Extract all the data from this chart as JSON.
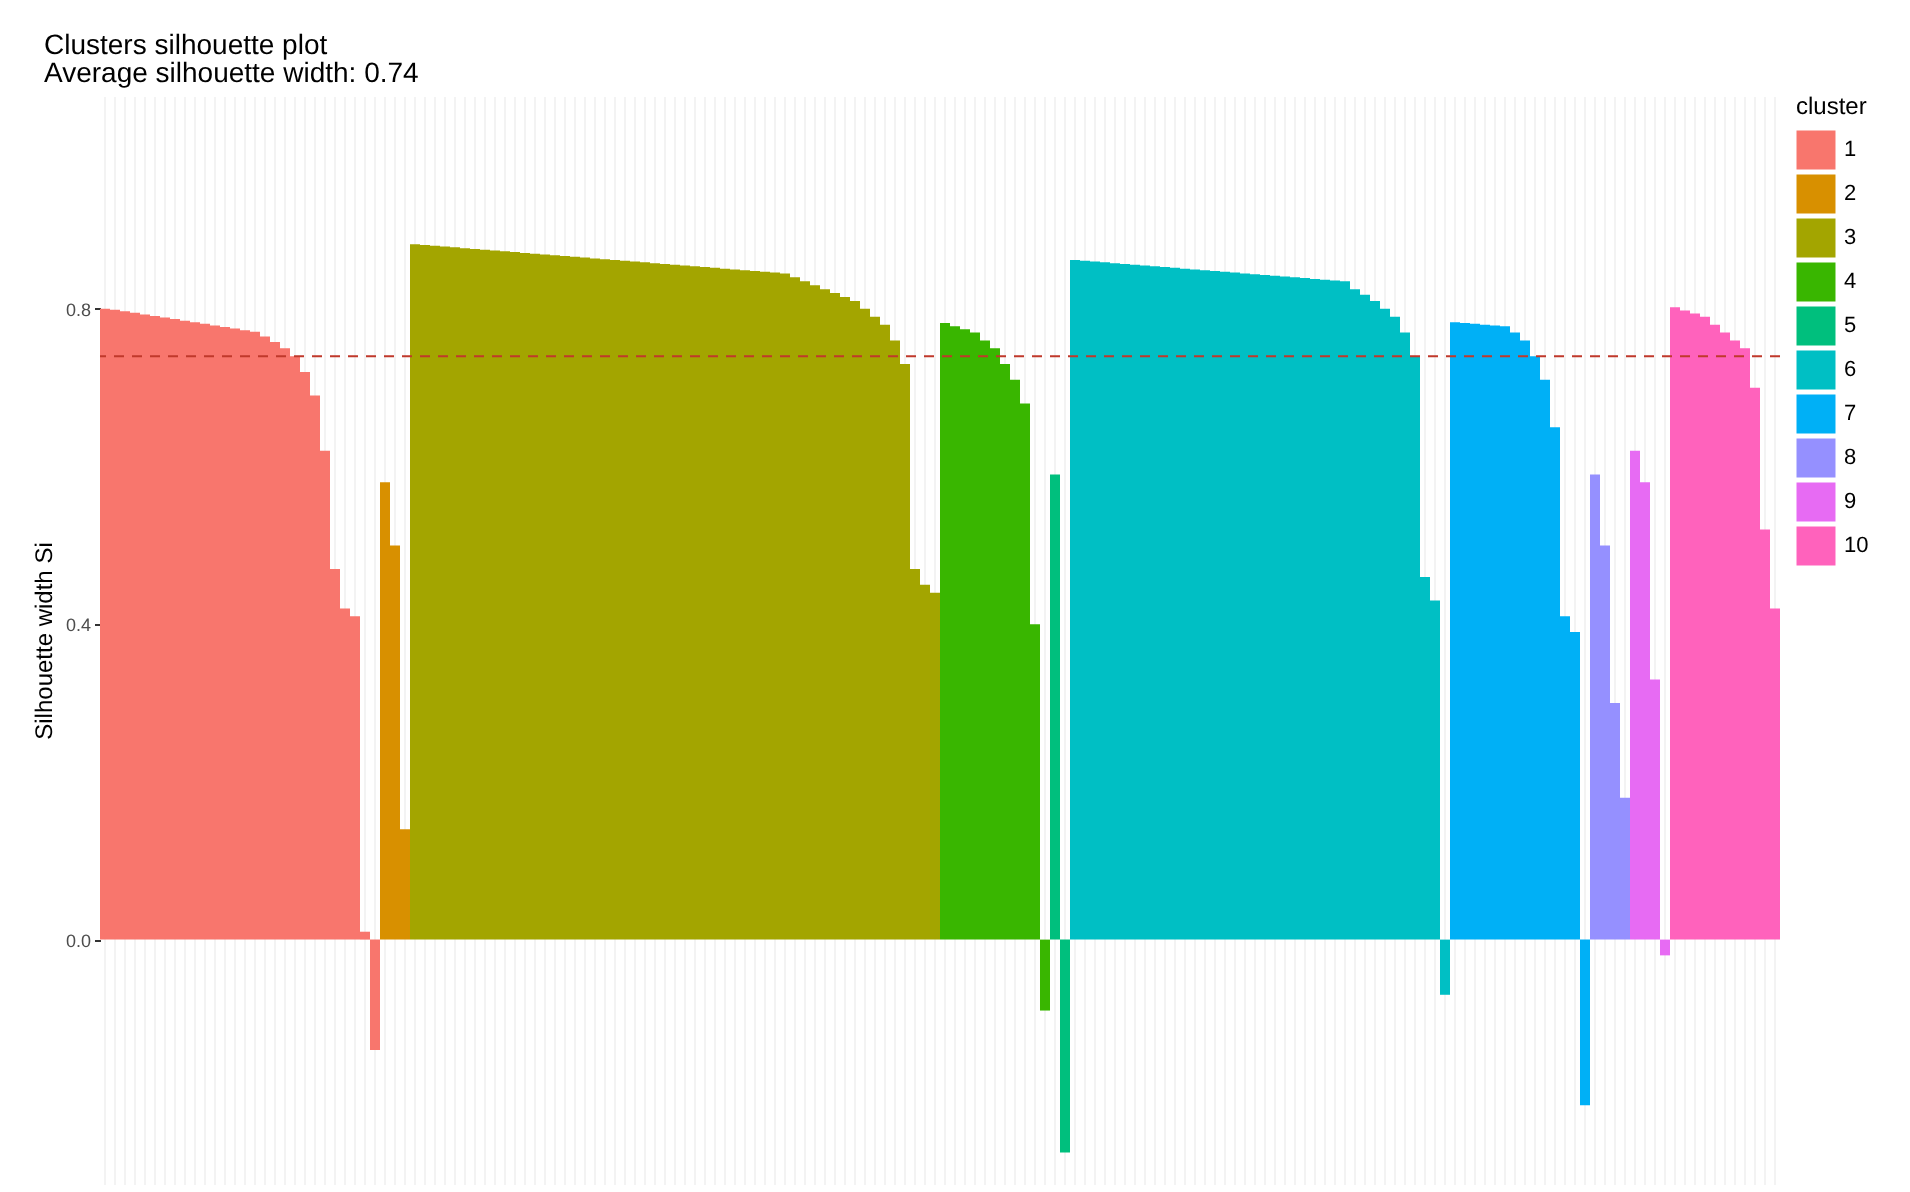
{
  "chart_data": {
    "type": "bar",
    "title": "Clusters silhouette plot",
    "subtitle": " Average silhouette width: 0.74",
    "ylabel": "Silhouette width Si",
    "legend_title": "cluster",
    "categories": [
      null,
      null,
      null,
      null,
      null,
      null,
      null,
      null,
      null,
      null,
      null,
      null,
      null,
      null,
      null,
      null,
      null,
      null,
      null,
      null,
      null,
      null,
      null,
      null,
      null,
      null,
      null,
      null,
      null,
      null,
      null,
      null,
      null,
      null,
      null,
      null,
      null,
      null,
      null,
      null,
      null,
      null,
      null,
      null,
      null,
      null,
      null,
      null,
      null,
      null,
      null,
      null,
      null,
      null,
      null,
      null,
      null,
      null,
      null,
      null,
      null,
      null,
      null,
      null,
      null,
      null,
      null,
      null,
      null,
      null,
      null,
      null,
      null,
      null,
      null,
      null,
      null,
      null,
      null,
      null,
      null,
      null,
      null,
      null,
      null,
      null,
      null,
      null,
      null,
      null,
      null,
      null,
      null,
      null,
      null,
      null,
      null,
      null,
      null,
      null,
      null,
      null,
      null,
      null,
      null,
      null,
      null,
      null,
      null,
      null,
      null,
      null,
      null,
      null,
      null,
      null,
      null,
      null,
      null,
      null,
      null,
      null,
      null,
      null,
      null,
      null,
      null,
      null,
      null,
      null,
      null,
      null,
      null,
      null,
      null,
      null,
      null,
      null,
      null,
      null,
      null,
      null,
      null,
      null,
      null,
      null,
      null,
      null,
      null,
      null,
      null,
      null,
      null,
      null,
      null,
      null,
      null,
      null,
      null,
      null,
      null,
      null,
      null,
      null,
      null,
      null,
      null,
      null
    ],
    "series": [
      {
        "name": "1",
        "color": "#f8766d",
        "values": [
          0.8,
          0.799,
          0.797,
          0.795,
          0.793,
          0.791,
          0.789,
          0.787,
          0.785,
          0.783,
          0.781,
          0.779,
          0.777,
          0.775,
          0.773,
          0.771,
          0.765,
          0.758,
          0.75,
          0.74,
          0.72,
          0.69,
          0.62,
          0.47,
          0.42,
          0.41,
          0.01,
          -0.14,
          null,
          null,
          null,
          null,
          null,
          null,
          null,
          null,
          null,
          null,
          null,
          null,
          null,
          null,
          null,
          null,
          null,
          null,
          null,
          null,
          null,
          null,
          null,
          null,
          null,
          null,
          null,
          null,
          null,
          null,
          null,
          null,
          null,
          null,
          null,
          null,
          null,
          null,
          null,
          null,
          null,
          null,
          null,
          null,
          null,
          null,
          null,
          null,
          null,
          null,
          null,
          null,
          null,
          null,
          null,
          null,
          null,
          null,
          null,
          null,
          null,
          null,
          null,
          null,
          null,
          null,
          null,
          null,
          null,
          null,
          null,
          null,
          null,
          null,
          null,
          null,
          null,
          null,
          null,
          null,
          null,
          null,
          null,
          null,
          null,
          null,
          null,
          null,
          null,
          null,
          null,
          null,
          null,
          null,
          null,
          null,
          null,
          null,
          null,
          null,
          null,
          null,
          null,
          null,
          null,
          null,
          null,
          null,
          null,
          null,
          null,
          null,
          null,
          null,
          null,
          null,
          null,
          null,
          null,
          null,
          null,
          null,
          null,
          null,
          null,
          null,
          null,
          null,
          null,
          null,
          null,
          null,
          null,
          null,
          null,
          null,
          null,
          null,
          null,
          null
        ]
      },
      {
        "name": "2",
        "color": "#d89000",
        "values": [
          null,
          null,
          null,
          null,
          null,
          null,
          null,
          null,
          null,
          null,
          null,
          null,
          null,
          null,
          null,
          null,
          null,
          null,
          null,
          null,
          null,
          null,
          null,
          null,
          null,
          null,
          null,
          null,
          0.58,
          0.5,
          0.14,
          null,
          null,
          null,
          null,
          null,
          null,
          null,
          null,
          null,
          null,
          null,
          null,
          null,
          null,
          null,
          null,
          null,
          null,
          null,
          null,
          null,
          null,
          null,
          null,
          null,
          null,
          null,
          null,
          null,
          null,
          null,
          null,
          null,
          null,
          null,
          null,
          null,
          null,
          null,
          null,
          null,
          null,
          null,
          null,
          null,
          null,
          null,
          null,
          null,
          null,
          null,
          null,
          null,
          null,
          null,
          null,
          null,
          null,
          null,
          null,
          null,
          null,
          null,
          null,
          null,
          null,
          null,
          null,
          null,
          null,
          null,
          null,
          null,
          null,
          null,
          null,
          null,
          null,
          null,
          null,
          null,
          null,
          null,
          null,
          null,
          null,
          null,
          null,
          null,
          null,
          null,
          null,
          null,
          null,
          null,
          null,
          null,
          null,
          null,
          null,
          null,
          null,
          null,
          null,
          null,
          null,
          null,
          null,
          null,
          null,
          null,
          null,
          null,
          null,
          null,
          null,
          null,
          null,
          null,
          null,
          null,
          null,
          null,
          null,
          null,
          null,
          null,
          null,
          null,
          null,
          null,
          null,
          null,
          null,
          null,
          null,
          null
        ]
      },
      {
        "name": "3",
        "color": "#a3a500",
        "values": [
          null,
          null,
          null,
          null,
          null,
          null,
          null,
          null,
          null,
          null,
          null,
          null,
          null,
          null,
          null,
          null,
          null,
          null,
          null,
          null,
          null,
          null,
          null,
          null,
          null,
          null,
          null,
          null,
          null,
          null,
          null,
          0.882,
          0.881,
          0.88,
          0.879,
          0.878,
          0.877,
          0.876,
          0.875,
          0.874,
          0.873,
          0.872,
          0.871,
          0.87,
          0.869,
          0.868,
          0.867,
          0.866,
          0.865,
          0.864,
          0.863,
          0.862,
          0.861,
          0.86,
          0.859,
          0.858,
          0.857,
          0.856,
          0.855,
          0.854,
          0.853,
          0.852,
          0.851,
          0.85,
          0.849,
          0.848,
          0.847,
          0.846,
          0.845,
          0.84,
          0.835,
          0.83,
          0.825,
          0.82,
          0.815,
          0.81,
          0.8,
          0.79,
          0.78,
          0.76,
          0.73,
          0.47,
          0.45,
          0.44,
          null,
          null,
          null,
          null,
          null,
          null,
          null,
          null,
          null,
          null,
          null,
          null,
          null,
          null,
          null,
          null,
          null,
          null,
          null,
          null,
          null,
          null,
          null,
          null,
          null,
          null,
          null,
          null,
          null,
          null,
          null,
          null,
          null,
          null,
          null,
          null,
          null,
          null,
          null,
          null,
          null,
          null,
          null,
          null,
          null,
          null,
          null,
          null,
          null,
          null,
          null,
          null,
          null,
          null,
          null,
          null,
          null,
          null,
          null,
          null,
          null,
          null,
          null,
          null,
          null,
          null,
          null,
          null,
          null,
          null,
          null,
          null,
          null,
          null,
          null,
          null,
          null,
          null,
          null,
          null,
          null,
          null,
          null,
          null
        ]
      },
      {
        "name": "4",
        "color": "#39b600",
        "values": [
          null,
          null,
          null,
          null,
          null,
          null,
          null,
          null,
          null,
          null,
          null,
          null,
          null,
          null,
          null,
          null,
          null,
          null,
          null,
          null,
          null,
          null,
          null,
          null,
          null,
          null,
          null,
          null,
          null,
          null,
          null,
          null,
          null,
          null,
          null,
          null,
          null,
          null,
          null,
          null,
          null,
          null,
          null,
          null,
          null,
          null,
          null,
          null,
          null,
          null,
          null,
          null,
          null,
          null,
          null,
          null,
          null,
          null,
          null,
          null,
          null,
          null,
          null,
          null,
          null,
          null,
          null,
          null,
          null,
          null,
          null,
          null,
          null,
          null,
          null,
          null,
          null,
          null,
          null,
          null,
          null,
          null,
          null,
          null,
          0.782,
          0.778,
          0.774,
          0.77,
          0.76,
          0.75,
          0.73,
          0.71,
          0.68,
          0.4,
          -0.09,
          null,
          null,
          null,
          null,
          null,
          null,
          null,
          null,
          null,
          null,
          null,
          null,
          null,
          null,
          null,
          null,
          null,
          null,
          null,
          null,
          null,
          null,
          null,
          null,
          null,
          null,
          null,
          null,
          null,
          null,
          null,
          null,
          null,
          null,
          null,
          null,
          null,
          null,
          null,
          null,
          null,
          null,
          null,
          null,
          null,
          null,
          null,
          null,
          null,
          null,
          null,
          null,
          null,
          null,
          null,
          null,
          null,
          null,
          null,
          null,
          null,
          null,
          null,
          null,
          null,
          null,
          null,
          null,
          null,
          null,
          null,
          null,
          null
        ]
      },
      {
        "name": "5",
        "color": "#00bf7d",
        "values": [
          null,
          null,
          null,
          null,
          null,
          null,
          null,
          null,
          null,
          null,
          null,
          null,
          null,
          null,
          null,
          null,
          null,
          null,
          null,
          null,
          null,
          null,
          null,
          null,
          null,
          null,
          null,
          null,
          null,
          null,
          null,
          null,
          null,
          null,
          null,
          null,
          null,
          null,
          null,
          null,
          null,
          null,
          null,
          null,
          null,
          null,
          null,
          null,
          null,
          null,
          null,
          null,
          null,
          null,
          null,
          null,
          null,
          null,
          null,
          null,
          null,
          null,
          null,
          null,
          null,
          null,
          null,
          null,
          null,
          null,
          null,
          null,
          null,
          null,
          null,
          null,
          null,
          null,
          null,
          null,
          null,
          null,
          null,
          null,
          null,
          null,
          null,
          null,
          null,
          null,
          null,
          null,
          null,
          null,
          null,
          0.59,
          -0.27,
          null,
          null,
          null,
          null,
          null,
          null,
          null,
          null,
          null,
          null,
          null,
          null,
          null,
          null,
          null,
          null,
          null,
          null,
          null,
          null,
          null,
          null,
          null,
          null,
          null,
          null,
          null,
          null,
          null,
          null,
          null,
          null,
          null,
          null,
          null,
          null,
          null,
          null,
          null,
          null,
          null,
          null,
          null,
          null,
          null,
          null,
          null,
          null,
          null,
          null,
          null,
          null,
          null,
          null,
          null,
          null,
          null,
          null,
          null,
          null,
          null,
          null,
          null,
          null,
          null,
          null,
          null,
          null,
          null,
          null,
          null
        ]
      },
      {
        "name": "6",
        "color": "#00bfc4",
        "values": [
          null,
          null,
          null,
          null,
          null,
          null,
          null,
          null,
          null,
          null,
          null,
          null,
          null,
          null,
          null,
          null,
          null,
          null,
          null,
          null,
          null,
          null,
          null,
          null,
          null,
          null,
          null,
          null,
          null,
          null,
          null,
          null,
          null,
          null,
          null,
          null,
          null,
          null,
          null,
          null,
          null,
          null,
          null,
          null,
          null,
          null,
          null,
          null,
          null,
          null,
          null,
          null,
          null,
          null,
          null,
          null,
          null,
          null,
          null,
          null,
          null,
          null,
          null,
          null,
          null,
          null,
          null,
          null,
          null,
          null,
          null,
          null,
          null,
          null,
          null,
          null,
          null,
          null,
          null,
          null,
          null,
          null,
          null,
          null,
          null,
          null,
          null,
          null,
          null,
          null,
          null,
          null,
          null,
          null,
          null,
          null,
          null,
          0.862,
          0.861,
          0.86,
          0.859,
          0.858,
          0.857,
          0.856,
          0.855,
          0.854,
          0.853,
          0.852,
          0.851,
          0.85,
          0.849,
          0.848,
          0.847,
          0.846,
          0.845,
          0.844,
          0.843,
          0.842,
          0.841,
          0.84,
          0.839,
          0.838,
          0.837,
          0.836,
          0.835,
          0.825,
          0.818,
          0.81,
          0.8,
          0.79,
          0.77,
          0.74,
          0.46,
          0.43,
          -0.07,
          null,
          null,
          null,
          null,
          null,
          null,
          null,
          null,
          null,
          null,
          null,
          null,
          null,
          null,
          null,
          null,
          null,
          null,
          null,
          null,
          null,
          null,
          null,
          null,
          null,
          null,
          null,
          null,
          null,
          null,
          null,
          null,
          null
        ]
      },
      {
        "name": "7",
        "color": "#00b0f6",
        "values": [
          null,
          null,
          null,
          null,
          null,
          null,
          null,
          null,
          null,
          null,
          null,
          null,
          null,
          null,
          null,
          null,
          null,
          null,
          null,
          null,
          null,
          null,
          null,
          null,
          null,
          null,
          null,
          null,
          null,
          null,
          null,
          null,
          null,
          null,
          null,
          null,
          null,
          null,
          null,
          null,
          null,
          null,
          null,
          null,
          null,
          null,
          null,
          null,
          null,
          null,
          null,
          null,
          null,
          null,
          null,
          null,
          null,
          null,
          null,
          null,
          null,
          null,
          null,
          null,
          null,
          null,
          null,
          null,
          null,
          null,
          null,
          null,
          null,
          null,
          null,
          null,
          null,
          null,
          null,
          null,
          null,
          null,
          null,
          null,
          null,
          null,
          null,
          null,
          null,
          null,
          null,
          null,
          null,
          null,
          null,
          null,
          null,
          null,
          null,
          null,
          null,
          null,
          null,
          null,
          null,
          null,
          null,
          null,
          null,
          null,
          null,
          null,
          null,
          null,
          null,
          null,
          null,
          null,
          null,
          null,
          null,
          null,
          null,
          null,
          null,
          null,
          null,
          null,
          null,
          null,
          null,
          null,
          null,
          null,
          null,
          0.783,
          0.782,
          0.781,
          0.78,
          0.779,
          0.778,
          0.77,
          0.76,
          0.74,
          0.71,
          0.65,
          0.41,
          0.39,
          -0.21,
          null,
          null,
          null,
          null,
          null,
          null,
          null,
          null,
          null,
          null,
          null,
          null,
          null,
          null,
          null,
          null,
          null,
          null,
          null
        ]
      },
      {
        "name": "8",
        "color": "#9590ff",
        "values": [
          null,
          null,
          null,
          null,
          null,
          null,
          null,
          null,
          null,
          null,
          null,
          null,
          null,
          null,
          null,
          null,
          null,
          null,
          null,
          null,
          null,
          null,
          null,
          null,
          null,
          null,
          null,
          null,
          null,
          null,
          null,
          null,
          null,
          null,
          null,
          null,
          null,
          null,
          null,
          null,
          null,
          null,
          null,
          null,
          null,
          null,
          null,
          null,
          null,
          null,
          null,
          null,
          null,
          null,
          null,
          null,
          null,
          null,
          null,
          null,
          null,
          null,
          null,
          null,
          null,
          null,
          null,
          null,
          null,
          null,
          null,
          null,
          null,
          null,
          null,
          null,
          null,
          null,
          null,
          null,
          null,
          null,
          null,
          null,
          null,
          null,
          null,
          null,
          null,
          null,
          null,
          null,
          null,
          null,
          null,
          null,
          null,
          null,
          null,
          null,
          null,
          null,
          null,
          null,
          null,
          null,
          null,
          null,
          null,
          null,
          null,
          null,
          null,
          null,
          null,
          null,
          null,
          null,
          null,
          null,
          null,
          null,
          null,
          null,
          null,
          null,
          null,
          null,
          null,
          null,
          null,
          null,
          null,
          null,
          null,
          null,
          null,
          null,
          null,
          null,
          null,
          null,
          null,
          null,
          null,
          null,
          null,
          null,
          null,
          0.59,
          0.5,
          0.3,
          0.18,
          null,
          null,
          null,
          null,
          null,
          null,
          null,
          null,
          null,
          null,
          null,
          null,
          null,
          null,
          null
        ]
      },
      {
        "name": "9",
        "color": "#e76bf3",
        "values": [
          null,
          null,
          null,
          null,
          null,
          null,
          null,
          null,
          null,
          null,
          null,
          null,
          null,
          null,
          null,
          null,
          null,
          null,
          null,
          null,
          null,
          null,
          null,
          null,
          null,
          null,
          null,
          null,
          null,
          null,
          null,
          null,
          null,
          null,
          null,
          null,
          null,
          null,
          null,
          null,
          null,
          null,
          null,
          null,
          null,
          null,
          null,
          null,
          null,
          null,
          null,
          null,
          null,
          null,
          null,
          null,
          null,
          null,
          null,
          null,
          null,
          null,
          null,
          null,
          null,
          null,
          null,
          null,
          null,
          null,
          null,
          null,
          null,
          null,
          null,
          null,
          null,
          null,
          null,
          null,
          null,
          null,
          null,
          null,
          null,
          null,
          null,
          null,
          null,
          null,
          null,
          null,
          null,
          null,
          null,
          null,
          null,
          null,
          null,
          null,
          null,
          null,
          null,
          null,
          null,
          null,
          null,
          null,
          null,
          null,
          null,
          null,
          null,
          null,
          null,
          null,
          null,
          null,
          null,
          null,
          null,
          null,
          null,
          null,
          null,
          null,
          null,
          null,
          null,
          null,
          null,
          null,
          null,
          null,
          null,
          null,
          null,
          null,
          null,
          null,
          null,
          null,
          null,
          null,
          null,
          null,
          null,
          null,
          null,
          null,
          null,
          null,
          null,
          0.62,
          0.58,
          0.33,
          -0.02,
          null,
          null,
          null,
          null,
          null,
          null,
          null,
          null,
          null,
          null,
          null
        ]
      },
      {
        "name": "10",
        "color": "#ff62bc",
        "values": [
          null,
          null,
          null,
          null,
          null,
          null,
          null,
          null,
          null,
          null,
          null,
          null,
          null,
          null,
          null,
          null,
          null,
          null,
          null,
          null,
          null,
          null,
          null,
          null,
          null,
          null,
          null,
          null,
          null,
          null,
          null,
          null,
          null,
          null,
          null,
          null,
          null,
          null,
          null,
          null,
          null,
          null,
          null,
          null,
          null,
          null,
          null,
          null,
          null,
          null,
          null,
          null,
          null,
          null,
          null,
          null,
          null,
          null,
          null,
          null,
          null,
          null,
          null,
          null,
          null,
          null,
          null,
          null,
          null,
          null,
          null,
          null,
          null,
          null,
          null,
          null,
          null,
          null,
          null,
          null,
          null,
          null,
          null,
          null,
          null,
          null,
          null,
          null,
          null,
          null,
          null,
          null,
          null,
          null,
          null,
          null,
          null,
          null,
          null,
          null,
          null,
          null,
          null,
          null,
          null,
          null,
          null,
          null,
          null,
          null,
          null,
          null,
          null,
          null,
          null,
          null,
          null,
          null,
          null,
          null,
          null,
          null,
          null,
          null,
          null,
          null,
          null,
          null,
          null,
          null,
          null,
          null,
          null,
          null,
          null,
          null,
          null,
          null,
          null,
          null,
          null,
          null,
          null,
          null,
          null,
          null,
          null,
          null,
          null,
          null,
          null,
          null,
          null,
          null,
          null,
          null,
          null,
          0.802,
          0.798,
          0.794,
          0.79,
          0.78,
          0.77,
          0.76,
          0.75,
          0.7,
          0.52,
          0.42
        ]
      }
    ],
    "ylim": [
      -0.31,
      1.07
    ],
    "yticks": [
      {
        "value": 0,
        "label": "0.0"
      },
      {
        "value": 0.4,
        "label": "0.4"
      },
      {
        "value": 0.8,
        "label": "0.8"
      }
    ],
    "ref_lines": [
      {
        "axis": "y",
        "value": 0.74,
        "color": "#c0392b",
        "line_style": "dashed"
      }
    ],
    "grid": "x",
    "legend": "right",
    "tick_labels": "y"
  }
}
